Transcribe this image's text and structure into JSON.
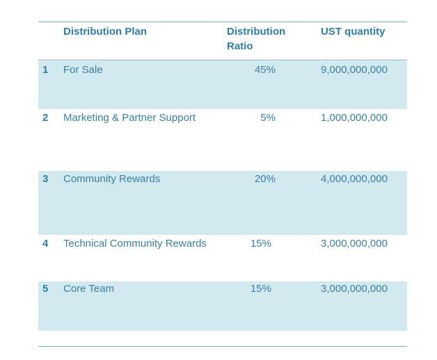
{
  "table": {
    "headers": {
      "plan": "Distribution Plan",
      "ratio_line1": "Distribution",
      "ratio_line2": "Ratio",
      "quantity": "UST quantity"
    },
    "rows": [
      {
        "index": "1",
        "plan": "For Sale",
        "ratio": "45%",
        "quantity": "9,000,000,000"
      },
      {
        "index": "2",
        "plan": "Marketing & Partner Support",
        "ratio": "5%",
        "quantity": "1,000,000,000"
      },
      {
        "index": "3",
        "plan": "Community Rewards",
        "ratio": "20%",
        "quantity": "4,000,000,000"
      },
      {
        "index": "4",
        "plan": "Technical Community Rewards",
        "ratio": "15%",
        "quantity": "3,000,000,000"
      },
      {
        "index": "5",
        "plan": "Core Team",
        "ratio": "15%",
        "quantity": "3,000,000,000"
      }
    ]
  },
  "colors": {
    "text": "#3a7fa0",
    "header_text": "#2f7ea1",
    "shaded_row": "#d3e9f0",
    "rule": "#6fb3cd"
  }
}
